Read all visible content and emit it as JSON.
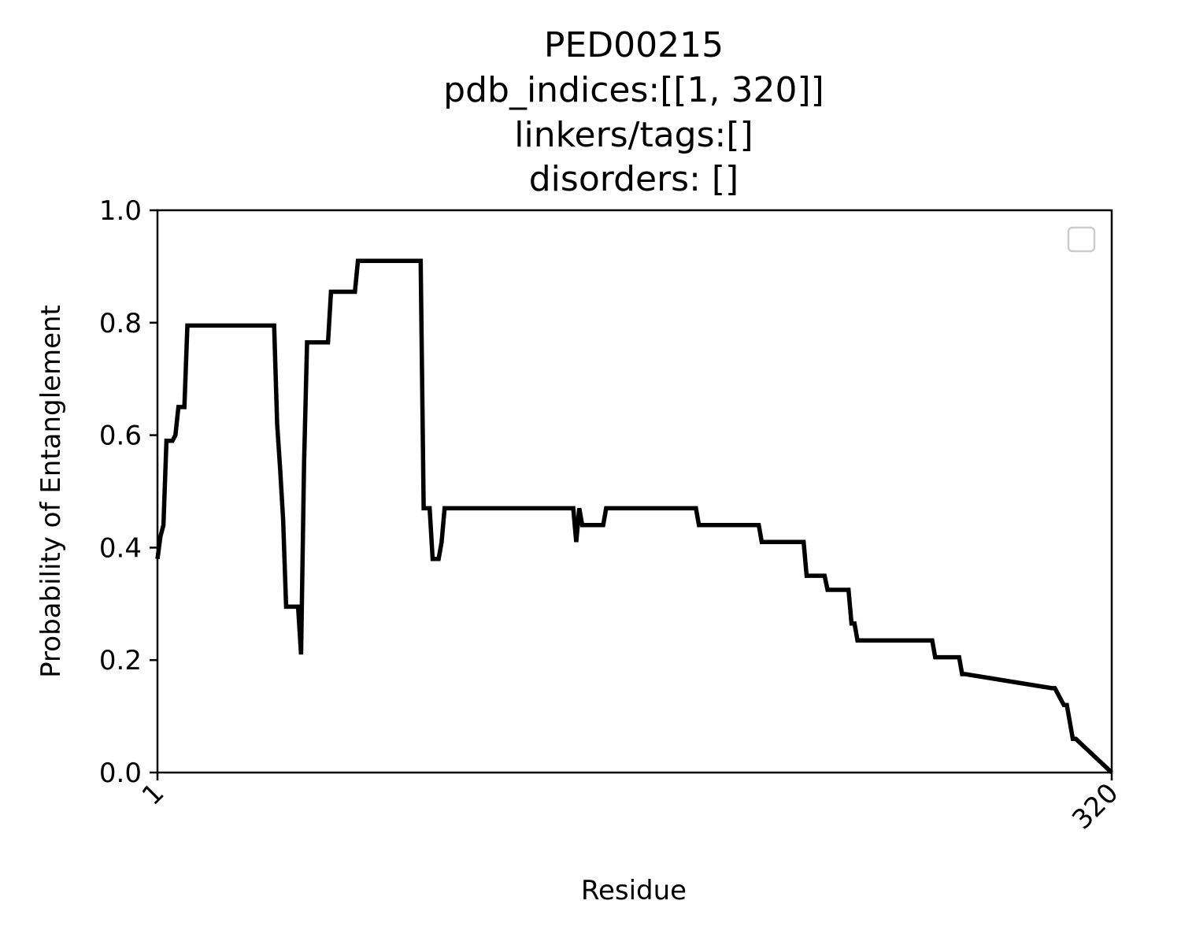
{
  "chart_data": {
    "type": "line",
    "title_lines": [
      "PED00215",
      "pdb_indices:[[1, 320]]",
      "linkers/tags:[]",
      "disorders: []"
    ],
    "xlabel": "Residue",
    "ylabel": "Probability of Entanglement",
    "xlim": [
      1,
      320
    ],
    "ylim": [
      0.0,
      1.0
    ],
    "x_ticks": [
      "1",
      "320"
    ],
    "y_ticks": [
      "0.0",
      "0.2",
      "0.4",
      "0.6",
      "0.8",
      "1.0"
    ],
    "grid": false,
    "legend": "top-right (empty)",
    "line_color": "#000000",
    "series": [
      {
        "x": [
          1,
          2,
          3,
          4,
          5,
          6,
          7,
          8,
          9,
          10,
          11,
          40,
          41,
          42,
          43,
          44,
          45,
          48,
          49,
          50,
          51,
          52,
          53,
          58,
          59,
          60,
          67,
          68,
          69,
          89,
          90,
          91,
          92,
          93,
          95,
          96,
          97,
          99,
          140,
          141,
          142,
          143,
          144,
          145,
          150,
          151,
          152,
          157,
          160,
          181,
          182,
          183,
          202,
          203,
          217,
          218,
          219,
          220,
          224,
          225,
          232,
          233,
          234,
          235,
          236,
          260,
          261,
          264,
          265,
          269,
          270,
          271,
          300,
          301,
          304,
          305,
          307,
          308,
          320
        ],
        "y": [
          0.38,
          0.42,
          0.44,
          0.59,
          0.59,
          0.59,
          0.6,
          0.65,
          0.65,
          0.65,
          0.795,
          0.795,
          0.62,
          0.54,
          0.45,
          0.295,
          0.295,
          0.295,
          0.21,
          0.55,
          0.765,
          0.765,
          0.765,
          0.765,
          0.855,
          0.855,
          0.855,
          0.91,
          0.91,
          0.91,
          0.47,
          0.47,
          0.47,
          0.38,
          0.38,
          0.41,
          0.47,
          0.47,
          0.47,
          0.41,
          0.47,
          0.44,
          0.44,
          0.44,
          0.44,
          0.47,
          0.47,
          0.47,
          0.47,
          0.47,
          0.44,
          0.44,
          0.44,
          0.41,
          0.41,
          0.35,
          0.35,
          0.35,
          0.35,
          0.325,
          0.325,
          0.265,
          0.265,
          0.235,
          0.235,
          0.235,
          0.205,
          0.205,
          0.205,
          0.205,
          0.175,
          0.175,
          0.15,
          0.15,
          0.12,
          0.12,
          0.06,
          0.06,
          0.0
        ]
      }
    ]
  }
}
